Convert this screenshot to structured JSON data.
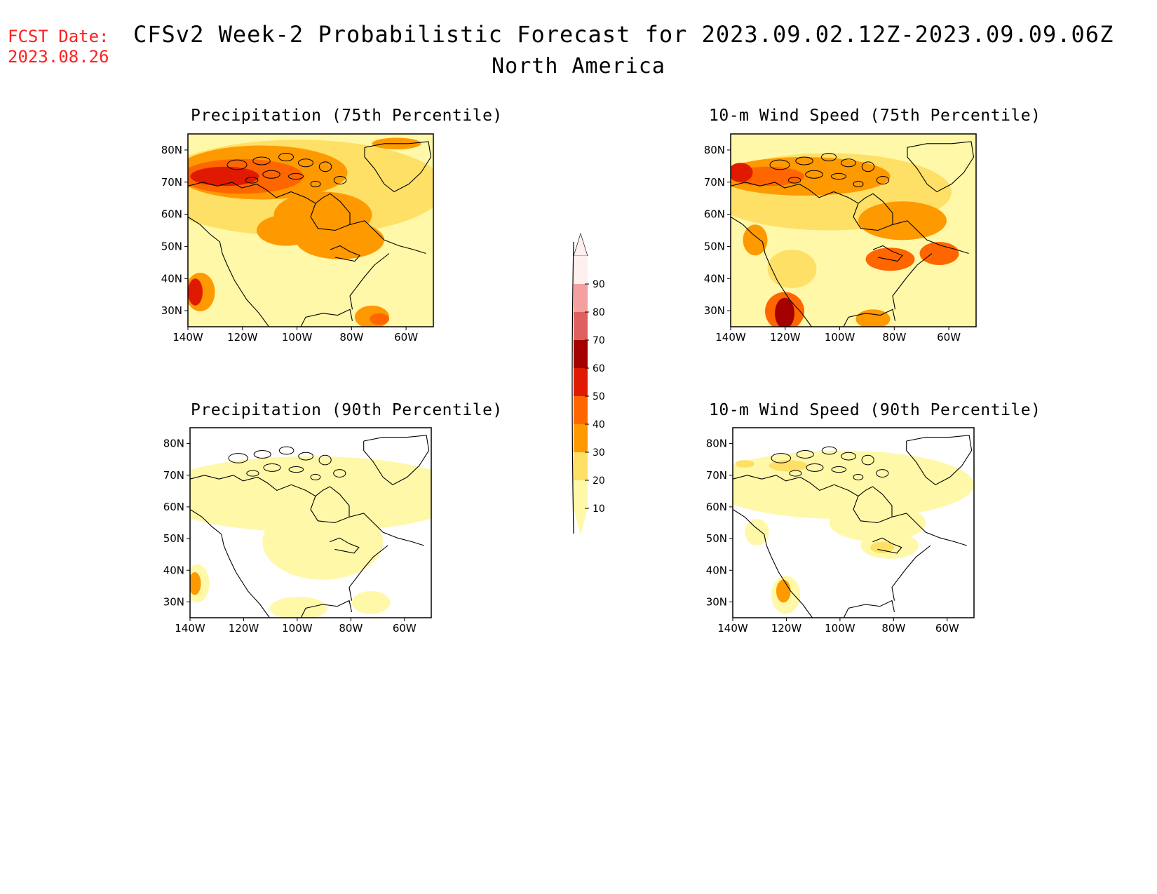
{
  "header": {
    "fcst_label": "FCST Date:",
    "fcst_date": "2023.08.26",
    "title": "CFSv2 Week-2 Probabilistic Forecast for 2023.09.02.12Z-2023.09.09.06Z",
    "subtitle": "North America"
  },
  "axes": {
    "lat_ticks": [
      "80N",
      "70N",
      "60N",
      "50N",
      "40N",
      "30N"
    ],
    "lat_values": [
      80,
      70,
      60,
      50,
      40,
      30
    ],
    "lon_ticks": [
      "140W",
      "120W",
      "100W",
      "80W",
      "60W"
    ],
    "lon_values": [
      -140,
      -120,
      -100,
      -80,
      -60
    ],
    "lon_range": [
      -140,
      -50
    ],
    "lat_range": [
      25,
      85
    ]
  },
  "panels": [
    {
      "id": "precip75",
      "title": "Precipitation (75th Percentile)",
      "intensity": "high"
    },
    {
      "id": "wind75",
      "title": "10-m Wind Speed (75th Percentile)",
      "intensity": "high"
    },
    {
      "id": "precip90",
      "title": "Precipitation (90th Percentile)",
      "intensity": "low"
    },
    {
      "id": "wind90",
      "title": "10-m Wind Speed (90th Percentile)",
      "intensity": "low"
    }
  ],
  "colorbar": {
    "labels": [
      "90",
      "80",
      "70",
      "60",
      "50",
      "40",
      "30",
      "20",
      "10"
    ],
    "colors": [
      "#fff0f0",
      "#f2a0a0",
      "#e06060",
      "#a50000",
      "#e01a00",
      "#ff6600",
      "#ff9900",
      "#ffe066",
      "#fff8a8"
    ]
  },
  "legend_colors": {
    "c10": "#fff8a8",
    "c20": "#ffe066",
    "c30": "#ff9900",
    "c40": "#ff6600",
    "c50": "#e01a00",
    "c60": "#a50000",
    "c70": "#e06060",
    "c80": "#f2a0a0"
  }
}
